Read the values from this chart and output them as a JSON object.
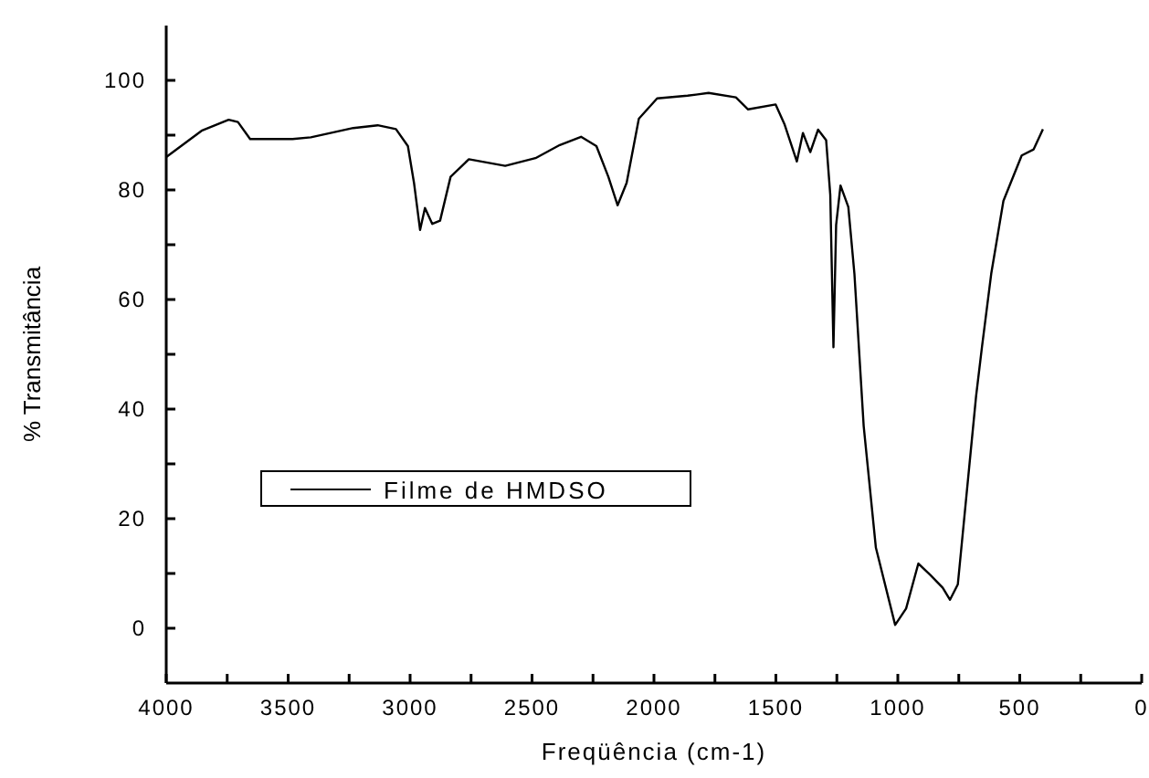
{
  "chart_data": {
    "type": "line",
    "xlabel": "Freqüência  (cm-1)",
    "ylabel": "% Transmitância",
    "xlim": [
      4000,
      0
    ],
    "xticks": [
      4000,
      {
        "value": 3750,
        "label": null
      },
      3500,
      {
        "value": 3250,
        "label": null
      },
      3000,
      {
        "value": 2750,
        "label": null
      },
      2500,
      {
        "value": 2250,
        "label": null
      },
      2000,
      {
        "value": 1750,
        "label": null
      },
      1500,
      {
        "value": 1250,
        "label": null
      },
      1000,
      {
        "value": 750,
        "label": null
      },
      500,
      {
        "value": 250,
        "label": null
      },
      0
    ],
    "ylim": [
      -10,
      110
    ],
    "yticks": [
      0,
      {
        "value": 10,
        "label": null
      },
      20,
      {
        "value": 30,
        "label": null
      },
      40,
      {
        "value": 50,
        "label": null
      },
      60,
      {
        "value": 70,
        "label": null
      },
      80,
      {
        "value": 90,
        "label": null
      },
      100
    ],
    "grid": false,
    "legend": "left",
    "marker": "none",
    "line_style": "solid",
    "series": [
      {
        "name": "Filme de HMDSO",
        "color": "#000000",
        "x": [
          4000,
          3855,
          3744,
          3706,
          3656,
          3482,
          3407,
          3233,
          3133,
          3058,
          3009,
          2984,
          2959,
          2939,
          2909,
          2877,
          2834,
          2759,
          2610,
          2486,
          2386,
          2299,
          2236,
          2187,
          2149,
          2112,
          2062,
          1987,
          1862,
          1776,
          1664,
          1614,
          1501,
          1464,
          1414,
          1389,
          1359,
          1327,
          1294,
          1277,
          1264,
          1253,
          1235,
          1203,
          1178,
          1140,
          1090,
          1011,
          966,
          916,
          866,
          816,
          786,
          754,
          679,
          655,
          617,
          567,
          492,
          443,
          405
        ],
        "values": [
          86,
          90.8,
          92.8,
          92.4,
          89.3,
          89.3,
          89.6,
          91.3,
          91.8,
          91.1,
          88,
          81.3,
          72.7,
          76.7,
          73.8,
          74.4,
          82.4,
          85.6,
          84.4,
          85.8,
          88.2,
          89.7,
          88,
          82.4,
          77.2,
          81.3,
          93,
          96.7,
          97.2,
          97.7,
          96.9,
          94.7,
          95.6,
          91.9,
          85.2,
          90.4,
          86.9,
          91,
          89.1,
          79.1,
          51.3,
          73.6,
          80.8,
          76.9,
          64.7,
          36.9,
          14.7,
          0.6,
          3.6,
          11.8,
          9.7,
          7.4,
          5.2,
          8,
          42.4,
          51.3,
          64.7,
          78,
          86.3,
          87.4,
          91.1
        ]
      }
    ]
  }
}
